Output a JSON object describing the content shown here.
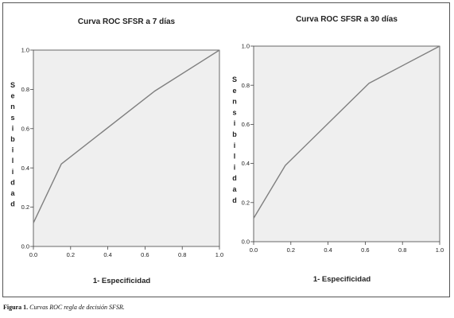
{
  "chart_data": [
    {
      "type": "line",
      "title": "Curva ROC SFSR a 7 días",
      "xlabel": "1- Especificidad",
      "ylabel": "Sensibilidad",
      "xlim": [
        0,
        1
      ],
      "ylim": [
        0,
        1
      ],
      "xticks": [
        "0.0",
        "0.2",
        "0.4",
        "0.6",
        "0.8",
        "1.0"
      ],
      "yticks": [
        "0.0",
        "0.2",
        "0.4",
        "0.6",
        "0.8",
        "1.0"
      ],
      "grid": false,
      "series": [
        {
          "x": [
            0,
            0.15,
            0.65,
            1.0
          ],
          "y": [
            0.12,
            0.42,
            0.79,
            1.0
          ],
          "color": "#7f7f7f"
        }
      ]
    },
    {
      "type": "line",
      "title": "Curva ROC SFSR a 30 días",
      "xlabel": "1- Especificidad",
      "ylabel": "Sensibilidad",
      "xlim": [
        0,
        1
      ],
      "ylim": [
        0,
        1
      ],
      "xticks": [
        "0.0",
        "0.2",
        "0.4",
        "0.6",
        "0.8",
        "1.0"
      ],
      "yticks": [
        "0.0",
        "0.2",
        "0.4",
        "0.6",
        "0.8",
        "1.0"
      ],
      "grid": false,
      "series": [
        {
          "x": [
            0,
            0.17,
            0.62,
            1.0
          ],
          "y": [
            0.12,
            0.39,
            0.81,
            1.0
          ],
          "color": "#7f7f7f"
        }
      ]
    }
  ],
  "caption": {
    "label": "Figura 1.",
    "text": "Curvas ROC regla de decisión SFSR."
  },
  "colors": {
    "plot_background": "#efefef",
    "axis": "#444444",
    "curve": "#7f7f7f",
    "frame": "#555555"
  }
}
